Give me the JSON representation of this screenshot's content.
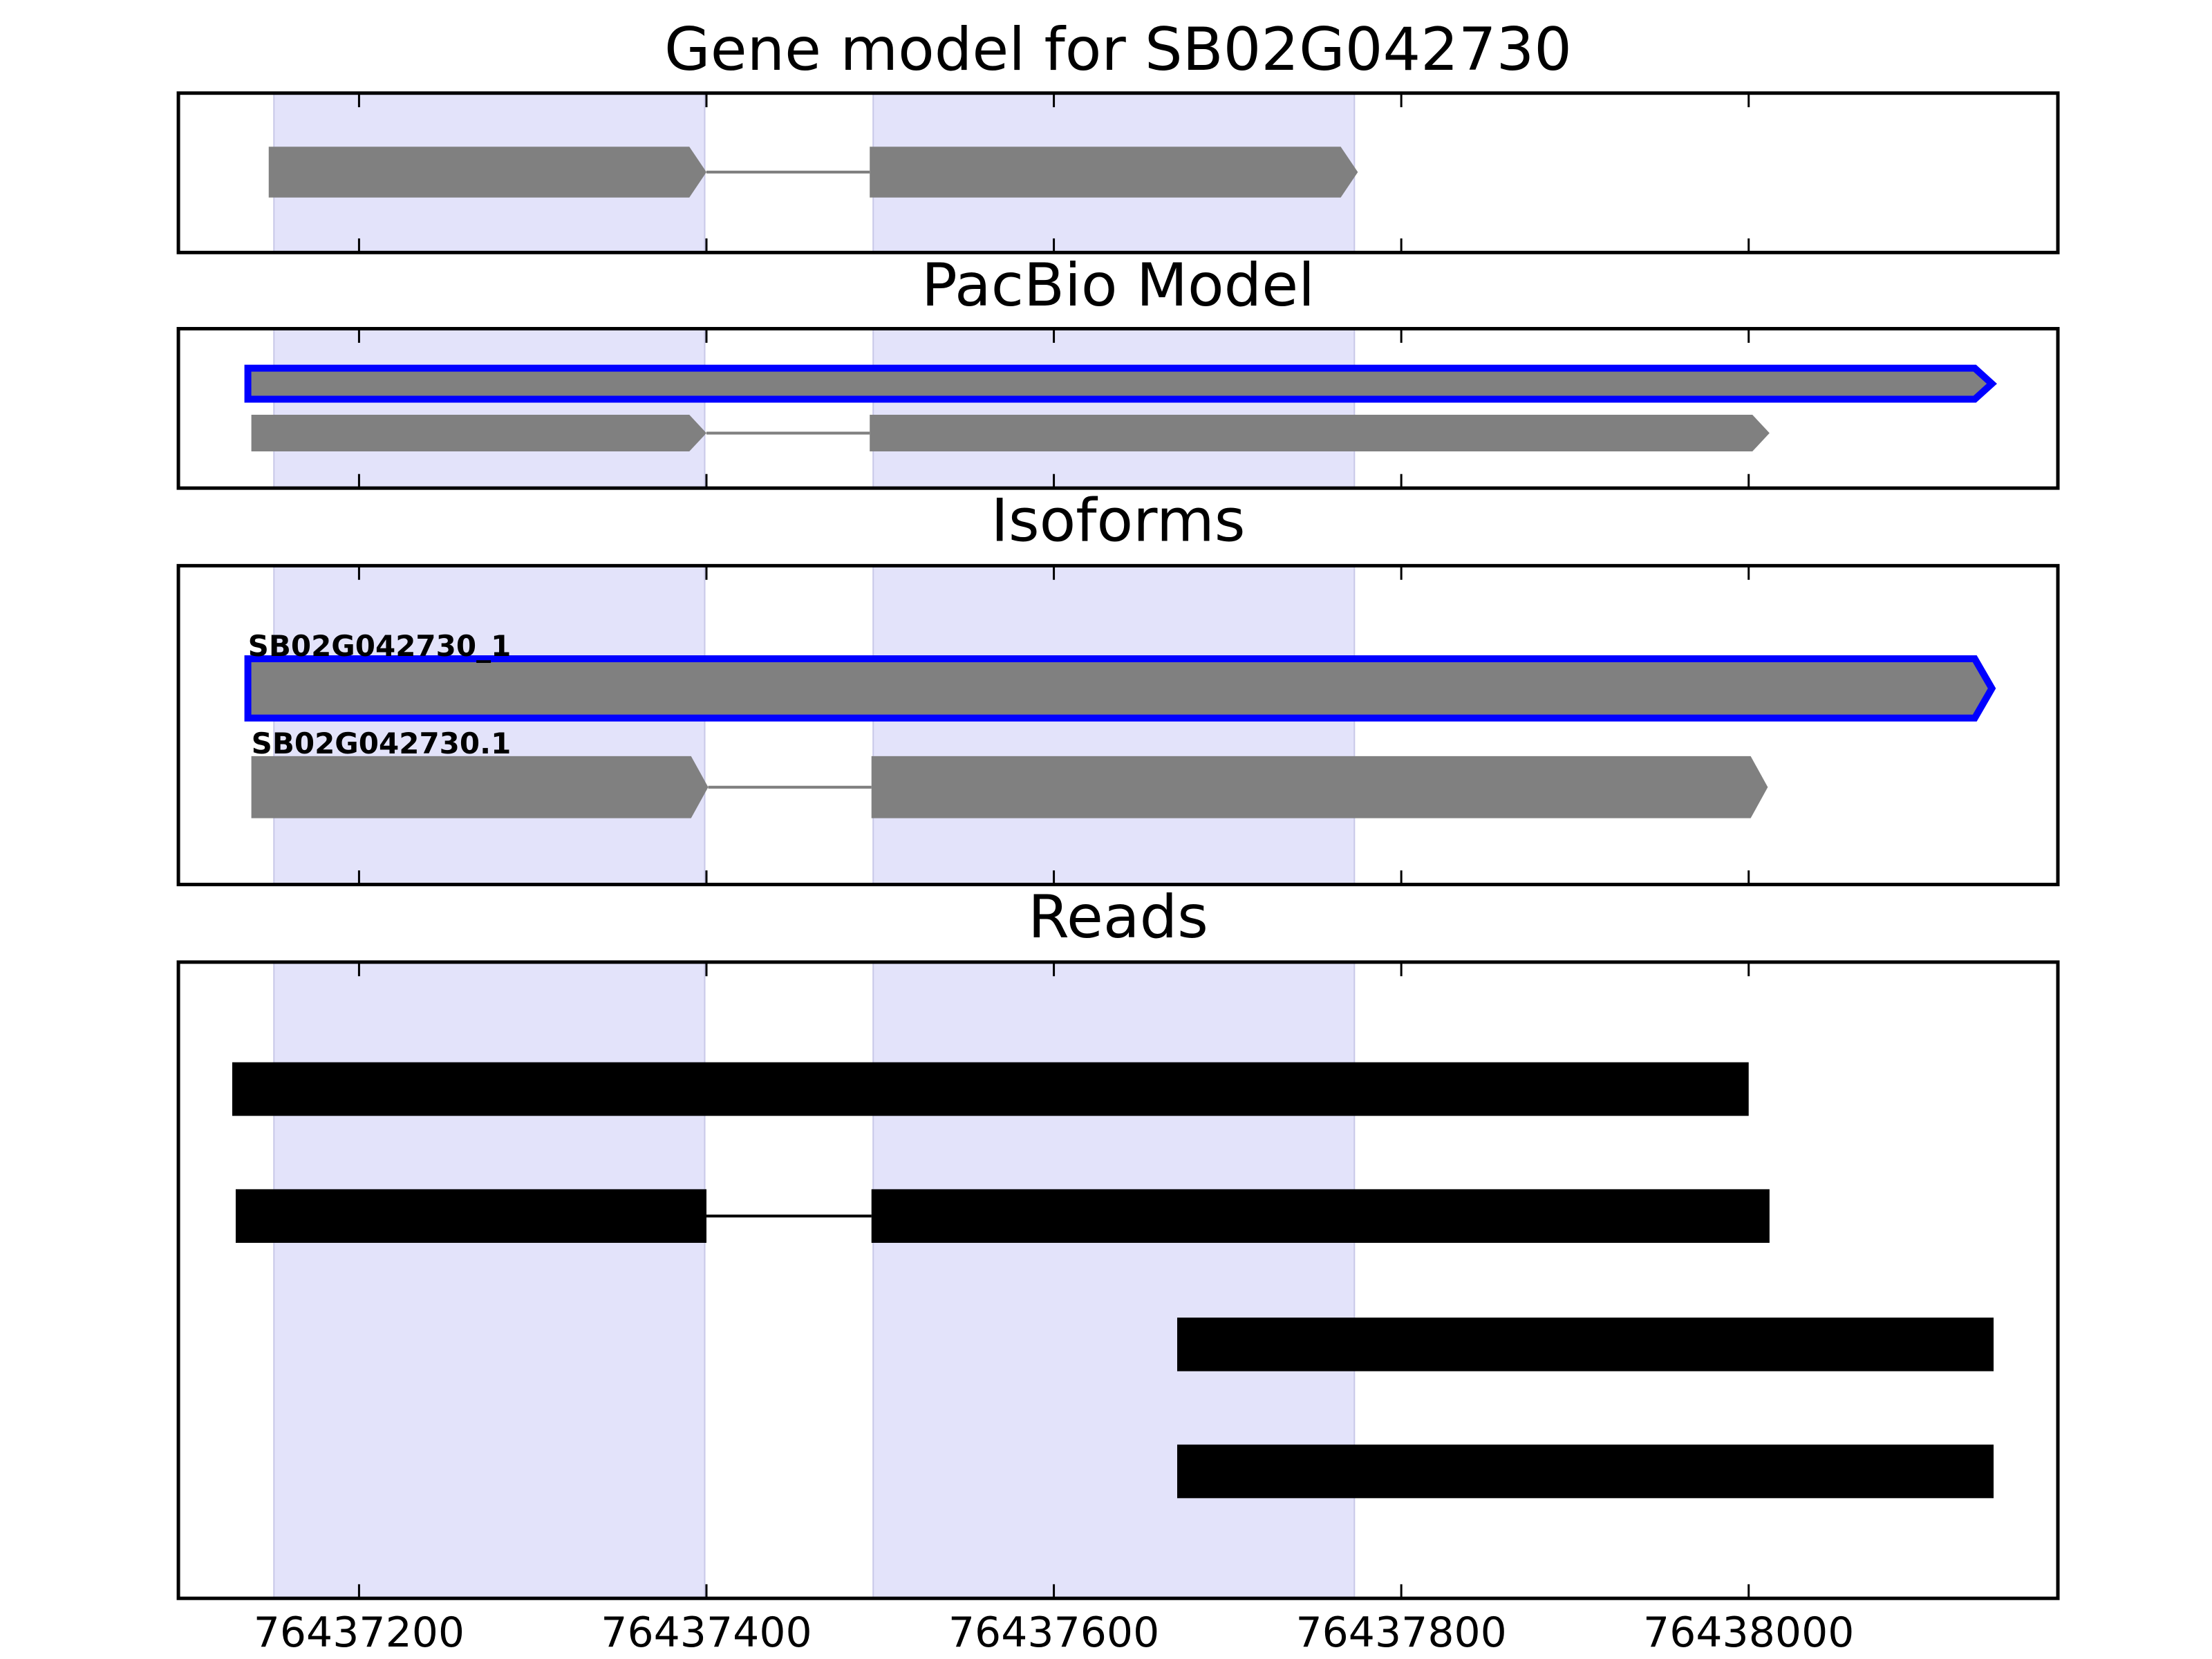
{
  "chart_data": [
    {
      "type": "gene",
      "title": "Gene model for SB02G042730",
      "xlim": [
        76437096,
        76438178
      ],
      "xticks": [
        76437200,
        76437400,
        76437600,
        76437800,
        76438000
      ],
      "xtick_labels": false,
      "highlights": [
        [
          76437151,
          76437399
        ],
        [
          76437496,
          76437773
        ]
      ],
      "highlight_color": "#e3e3fa",
      "arrow": true,
      "tracks": [
        {
          "color": "#808080",
          "exons": [
            [
              76437148,
              76437400
            ],
            [
              76437494,
              76437775
            ]
          ]
        }
      ]
    },
    {
      "type": "gene",
      "title": "PacBio Model",
      "xlim": [
        76437096,
        76438178
      ],
      "xticks": [
        76437200,
        76437400,
        76437600,
        76437800,
        76438000
      ],
      "xtick_labels": false,
      "highlights": [
        [
          76437151,
          76437399
        ],
        [
          76437496,
          76437773
        ]
      ],
      "highlight_color": "#e3e3fa",
      "arrow": true,
      "tracks": [
        {
          "color": "#808080",
          "edge_color": "#0000ff",
          "exons": [
            [
              76437136,
              76438140
            ]
          ]
        },
        {
          "color": "#808080",
          "exons": [
            [
              76437138,
              76437400
            ],
            [
              76437494,
              76438012
            ]
          ]
        }
      ]
    },
    {
      "type": "gene",
      "title": "Isoforms",
      "xlim": [
        76437096,
        76438178
      ],
      "xticks": [
        76437200,
        76437400,
        76437600,
        76437800,
        76438000
      ],
      "xtick_labels": false,
      "highlights": [
        [
          76437151,
          76437399
        ],
        [
          76437496,
          76437773
        ]
      ],
      "highlight_color": "#e3e3fa",
      "arrow": true,
      "tracks": [
        {
          "name": "SB02G042730_1",
          "color": "#808080",
          "edge_color": "#0000ff",
          "exons": [
            [
              76437136,
              76438140
            ]
          ]
        },
        {
          "name": "SB02G042730.1",
          "color": "#808080",
          "exons": [
            [
              76437138,
              76437401
            ],
            [
              76437495,
              76438011
            ]
          ]
        }
      ]
    },
    {
      "type": "gene",
      "title": "Reads",
      "xlim": [
        76437096,
        76438178
      ],
      "xticks": [
        76437200,
        76437400,
        76437600,
        76437800,
        76438000
      ],
      "xtick_labels": true,
      "highlights": [
        [
          76437151,
          76437399
        ],
        [
          76437496,
          76437773
        ]
      ],
      "highlight_color": "#e3e3fa",
      "arrow": false,
      "tracks": [
        {
          "color": "#000000",
          "exons": [
            [
              76437127,
              76438000
            ]
          ]
        },
        {
          "color": "#000000",
          "exons": [
            [
              76437129,
              76437400
            ],
            [
              76437495,
              76438012
            ]
          ]
        },
        {
          "color": "#000000",
          "exons": [
            [
              76437671,
              76438141
            ]
          ]
        },
        {
          "color": "#000000",
          "exons": [
            [
              76437671,
              76438141
            ]
          ]
        }
      ]
    }
  ]
}
